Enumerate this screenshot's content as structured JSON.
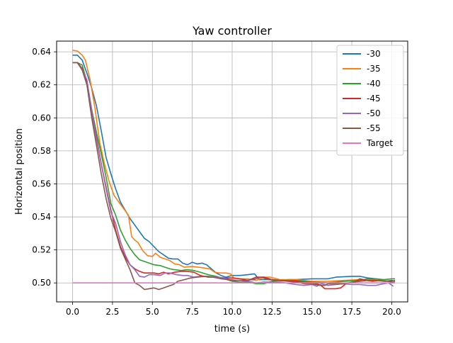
{
  "chart_data": {
    "type": "line",
    "title": "Yaw controller",
    "xlabel": "time (s)",
    "ylabel": "Horizontal position",
    "xlim": [
      -1.0,
      21.0
    ],
    "ylim": [
      0.4885,
      0.6465
    ],
    "x_ticks": [
      0.0,
      2.5,
      5.0,
      7.5,
      10.0,
      12.5,
      15.0,
      17.5,
      20.0
    ],
    "x_tick_labels": [
      "0.0",
      "2.5",
      "5.0",
      "7.5",
      "10.0",
      "12.5",
      "15.0",
      "17.5",
      "20.0"
    ],
    "y_ticks": [
      0.5,
      0.52,
      0.54,
      0.56,
      0.58,
      0.6,
      0.62,
      0.64
    ],
    "y_tick_labels": [
      "0.50",
      "0.52",
      "0.54",
      "0.56",
      "0.58",
      "0.60",
      "0.62",
      "0.64"
    ],
    "grid": true,
    "legend_position": "top-right",
    "series": [
      {
        "name": "-30",
        "color": "#1f77b4",
        "points": [
          [
            0.0,
            0.638
          ],
          [
            0.3,
            0.638
          ],
          [
            0.6,
            0.635
          ],
          [
            0.9,
            0.627
          ],
          [
            1.2,
            0.618
          ],
          [
            1.5,
            0.607
          ],
          [
            1.8,
            0.592
          ],
          [
            2.1,
            0.576
          ],
          [
            2.4,
            0.566
          ],
          [
            2.7,
            0.557
          ],
          [
            3.0,
            0.549
          ],
          [
            3.3,
            0.544
          ],
          [
            3.6,
            0.539
          ],
          [
            3.9,
            0.535
          ],
          [
            4.2,
            0.531
          ],
          [
            4.5,
            0.527
          ],
          [
            4.8,
            0.525
          ],
          [
            5.1,
            0.522
          ],
          [
            5.4,
            0.519
          ],
          [
            5.7,
            0.517
          ],
          [
            6.0,
            0.515
          ],
          [
            6.3,
            0.5145
          ],
          [
            6.6,
            0.5145
          ],
          [
            6.9,
            0.512
          ],
          [
            7.2,
            0.511
          ],
          [
            7.5,
            0.5125
          ],
          [
            7.8,
            0.5115
          ],
          [
            8.1,
            0.512
          ],
          [
            8.4,
            0.511
          ],
          [
            8.7,
            0.5085
          ],
          [
            9.0,
            0.506
          ],
          [
            9.3,
            0.5045
          ],
          [
            9.6,
            0.5035
          ],
          [
            10.0,
            0.5045
          ],
          [
            10.5,
            0.5045
          ],
          [
            11.0,
            0.505
          ],
          [
            11.4,
            0.5055
          ],
          [
            11.7,
            0.502
          ],
          [
            12.0,
            0.502
          ],
          [
            12.5,
            0.502
          ],
          [
            13.0,
            0.5015
          ],
          [
            13.5,
            0.502
          ],
          [
            14.0,
            0.502
          ],
          [
            15.0,
            0.5025
          ],
          [
            16.0,
            0.5025
          ],
          [
            16.5,
            0.5035
          ],
          [
            17.5,
            0.504
          ],
          [
            18.0,
            0.504
          ],
          [
            18.5,
            0.503
          ],
          [
            19.0,
            0.5025
          ],
          [
            19.5,
            0.5015
          ],
          [
            20.0,
            0.5005
          ],
          [
            20.2,
            0.5005
          ]
        ]
      },
      {
        "name": "-35",
        "color": "#ff7f0e",
        "points": [
          [
            0.0,
            0.641
          ],
          [
            0.3,
            0.6405
          ],
          [
            0.6,
            0.638
          ],
          [
            0.8,
            0.635
          ],
          [
            1.1,
            0.623
          ],
          [
            1.4,
            0.606
          ],
          [
            1.7,
            0.585
          ],
          [
            2.0,
            0.572
          ],
          [
            2.3,
            0.561
          ],
          [
            2.6,
            0.553
          ],
          [
            2.9,
            0.549
          ],
          [
            3.2,
            0.545
          ],
          [
            3.5,
            0.541
          ],
          [
            3.7,
            0.528
          ],
          [
            3.9,
            0.526
          ],
          [
            4.1,
            0.5245
          ],
          [
            4.4,
            0.5195
          ],
          [
            4.7,
            0.5165
          ],
          [
            5.0,
            0.516
          ],
          [
            5.2,
            0.518
          ],
          [
            5.5,
            0.5155
          ],
          [
            5.8,
            0.5145
          ],
          [
            6.1,
            0.5135
          ],
          [
            6.4,
            0.5115
          ],
          [
            6.7,
            0.511
          ],
          [
            7.0,
            0.5095
          ],
          [
            7.5,
            0.51
          ],
          [
            7.9,
            0.5095
          ],
          [
            8.3,
            0.509
          ],
          [
            8.6,
            0.5085
          ],
          [
            8.9,
            0.5065
          ],
          [
            9.2,
            0.506
          ],
          [
            9.6,
            0.506
          ],
          [
            9.9,
            0.5055
          ],
          [
            10.1,
            0.503
          ],
          [
            10.5,
            0.5025
          ],
          [
            11.0,
            0.5025
          ],
          [
            11.5,
            0.5015
          ],
          [
            12.0,
            0.5035
          ],
          [
            12.4,
            0.5035
          ],
          [
            13.0,
            0.502
          ],
          [
            14.0,
            0.502
          ],
          [
            15.0,
            0.501
          ],
          [
            16.0,
            0.501
          ],
          [
            17.0,
            0.5015
          ],
          [
            18.0,
            0.502
          ],
          [
            19.0,
            0.502
          ],
          [
            20.0,
            0.501
          ],
          [
            20.2,
            0.5005
          ]
        ]
      },
      {
        "name": "-40",
        "color": "#2ca02c",
        "points": [
          [
            0.0,
            0.6335
          ],
          [
            0.3,
            0.6335
          ],
          [
            0.6,
            0.632
          ],
          [
            0.9,
            0.622
          ],
          [
            1.2,
            0.605
          ],
          [
            1.5,
            0.591
          ],
          [
            1.8,
            0.578
          ],
          [
            2.1,
            0.564
          ],
          [
            2.4,
            0.548
          ],
          [
            2.7,
            0.541
          ],
          [
            3.0,
            0.532
          ],
          [
            3.3,
            0.526
          ],
          [
            3.6,
            0.521
          ],
          [
            3.9,
            0.517
          ],
          [
            4.2,
            0.514
          ],
          [
            4.5,
            0.513
          ],
          [
            4.8,
            0.512
          ],
          [
            5.1,
            0.511
          ],
          [
            5.5,
            0.5105
          ],
          [
            5.8,
            0.5095
          ],
          [
            6.1,
            0.5085
          ],
          [
            6.4,
            0.508
          ],
          [
            6.8,
            0.5075
          ],
          [
            7.2,
            0.508
          ],
          [
            7.6,
            0.5075
          ],
          [
            8.0,
            0.5065
          ],
          [
            8.5,
            0.505
          ],
          [
            9.0,
            0.504
          ],
          [
            9.5,
            0.5025
          ],
          [
            10.0,
            0.501
          ],
          [
            10.5,
            0.5005
          ],
          [
            11.0,
            0.5005
          ],
          [
            11.5,
            0.4995
          ],
          [
            12.0,
            0.4995
          ],
          [
            12.5,
            0.501
          ],
          [
            13.0,
            0.5015
          ],
          [
            14.0,
            0.5015
          ],
          [
            15.0,
            0.5005
          ],
          [
            16.0,
            0.5
          ],
          [
            17.0,
            0.501
          ],
          [
            18.0,
            0.5015
          ],
          [
            18.5,
            0.5025
          ],
          [
            19.0,
            0.5025
          ],
          [
            19.5,
            0.502
          ],
          [
            20.0,
            0.5025
          ],
          [
            20.2,
            0.5025
          ]
        ]
      },
      {
        "name": "-45",
        "color": "#d62728",
        "points": [
          [
            0.0,
            0.6335
          ],
          [
            0.3,
            0.6335
          ],
          [
            0.6,
            0.63
          ],
          [
            0.9,
            0.621
          ],
          [
            1.2,
            0.603
          ],
          [
            1.5,
            0.588
          ],
          [
            1.8,
            0.572
          ],
          [
            2.1,
            0.558
          ],
          [
            2.4,
            0.544
          ],
          [
            2.7,
            0.532
          ],
          [
            3.0,
            0.522
          ],
          [
            3.3,
            0.5155
          ],
          [
            3.6,
            0.511
          ],
          [
            3.9,
            0.5085
          ],
          [
            4.2,
            0.507
          ],
          [
            4.5,
            0.506
          ],
          [
            4.8,
            0.506
          ],
          [
            5.1,
            0.506
          ],
          [
            5.4,
            0.5055
          ],
          [
            5.7,
            0.5065
          ],
          [
            6.0,
            0.5055
          ],
          [
            6.4,
            0.5065
          ],
          [
            6.8,
            0.507
          ],
          [
            7.2,
            0.507
          ],
          [
            7.6,
            0.5065
          ],
          [
            8.0,
            0.5045
          ],
          [
            8.5,
            0.5035
          ],
          [
            9.0,
            0.5035
          ],
          [
            9.5,
            0.503
          ],
          [
            10.0,
            0.503
          ],
          [
            10.5,
            0.5025
          ],
          [
            11.0,
            0.5015
          ],
          [
            11.5,
            0.5035
          ],
          [
            12.0,
            0.5035
          ],
          [
            12.5,
            0.502
          ],
          [
            13.0,
            0.5015
          ],
          [
            14.0,
            0.501
          ],
          [
            15.0,
            0.5
          ],
          [
            15.5,
            0.499
          ],
          [
            15.8,
            0.4965
          ],
          [
            16.5,
            0.4965
          ],
          [
            16.8,
            0.497
          ],
          [
            17.2,
            0.5
          ],
          [
            17.6,
            0.5
          ],
          [
            18.0,
            0.5025
          ],
          [
            18.4,
            0.5015
          ],
          [
            18.8,
            0.501
          ],
          [
            19.2,
            0.5015
          ],
          [
            19.6,
            0.501
          ],
          [
            20.0,
            0.5015
          ],
          [
            20.2,
            0.501
          ]
        ]
      },
      {
        "name": "-50",
        "color": "#9467bd",
        "points": [
          [
            0.0,
            0.6335
          ],
          [
            0.3,
            0.6335
          ],
          [
            0.6,
            0.6295
          ],
          [
            0.9,
            0.623
          ],
          [
            1.2,
            0.604
          ],
          [
            1.5,
            0.587
          ],
          [
            1.8,
            0.572
          ],
          [
            2.1,
            0.557
          ],
          [
            2.4,
            0.543
          ],
          [
            2.7,
            0.536
          ],
          [
            3.0,
            0.525
          ],
          [
            3.3,
            0.517
          ],
          [
            3.6,
            0.511
          ],
          [
            3.9,
            0.508
          ],
          [
            4.2,
            0.504
          ],
          [
            4.5,
            0.5035
          ],
          [
            4.8,
            0.505
          ],
          [
            5.1,
            0.505
          ],
          [
            5.5,
            0.5045
          ],
          [
            5.8,
            0.506
          ],
          [
            6.1,
            0.506
          ],
          [
            6.5,
            0.505
          ],
          [
            6.9,
            0.5045
          ],
          [
            7.2,
            0.5045
          ],
          [
            7.6,
            0.5035
          ],
          [
            8.0,
            0.504
          ],
          [
            8.5,
            0.504
          ],
          [
            9.0,
            0.5035
          ],
          [
            9.5,
            0.503
          ],
          [
            10.0,
            0.5015
          ],
          [
            10.5,
            0.5015
          ],
          [
            11.0,
            0.501
          ],
          [
            11.5,
            0.5
          ],
          [
            12.0,
            0.5005
          ],
          [
            12.5,
            0.5005
          ],
          [
            13.0,
            0.5005
          ],
          [
            14.0,
            0.499
          ],
          [
            14.5,
            0.4985
          ],
          [
            15.0,
            0.499
          ],
          [
            15.3,
            0.498
          ],
          [
            15.6,
            0.4995
          ],
          [
            16.0,
            0.4985
          ],
          [
            16.5,
            0.499
          ],
          [
            17.0,
            0.4995
          ],
          [
            17.5,
            0.499
          ],
          [
            18.0,
            0.499
          ],
          [
            18.5,
            0.4985
          ],
          [
            19.0,
            0.4985
          ],
          [
            19.5,
            0.4995
          ],
          [
            19.8,
            0.5
          ],
          [
            20.1,
            0.498
          ]
        ]
      },
      {
        "name": "-55",
        "color": "#8c564b",
        "points": [
          [
            0.0,
            0.6335
          ],
          [
            0.3,
            0.6335
          ],
          [
            0.6,
            0.629
          ],
          [
            0.9,
            0.62
          ],
          [
            1.2,
            0.6
          ],
          [
            1.5,
            0.583
          ],
          [
            1.8,
            0.566
          ],
          [
            2.1,
            0.551
          ],
          [
            2.4,
            0.539
          ],
          [
            2.7,
            0.531
          ],
          [
            3.0,
            0.521
          ],
          [
            3.3,
            0.5145
          ],
          [
            3.6,
            0.508
          ],
          [
            3.9,
            0.5
          ],
          [
            4.2,
            0.4985
          ],
          [
            4.5,
            0.496
          ],
          [
            4.8,
            0.4965
          ],
          [
            5.1,
            0.497
          ],
          [
            5.4,
            0.496
          ],
          [
            5.7,
            0.497
          ],
          [
            6.0,
            0.498
          ],
          [
            6.3,
            0.499
          ],
          [
            6.6,
            0.501
          ],
          [
            7.0,
            0.502
          ],
          [
            7.4,
            0.503
          ],
          [
            7.8,
            0.5035
          ],
          [
            8.3,
            0.504
          ],
          [
            8.8,
            0.5035
          ],
          [
            9.3,
            0.5025
          ],
          [
            9.8,
            0.502
          ],
          [
            10.3,
            0.5015
          ],
          [
            10.8,
            0.5015
          ],
          [
            11.3,
            0.502
          ],
          [
            11.8,
            0.5035
          ],
          [
            12.3,
            0.502
          ],
          [
            12.8,
            0.5015
          ],
          [
            13.5,
            0.501
          ],
          [
            14.0,
            0.5005
          ],
          [
            14.5,
            0.4995
          ],
          [
            15.0,
            0.4995
          ],
          [
            15.5,
            0.4985
          ],
          [
            15.8,
            0.4985
          ],
          [
            16.0,
            0.4995
          ],
          [
            16.5,
            0.4995
          ],
          [
            17.0,
            0.4995
          ],
          [
            17.5,
            0.5005
          ],
          [
            18.0,
            0.501
          ],
          [
            18.5,
            0.5015
          ],
          [
            19.0,
            0.5015
          ],
          [
            19.5,
            0.501
          ],
          [
            20.0,
            0.501
          ],
          [
            20.2,
            0.5015
          ]
        ]
      },
      {
        "name": "Target",
        "color": "#e377c2",
        "points": [
          [
            0.0,
            0.5
          ],
          [
            20.2,
            0.5
          ]
        ]
      }
    ]
  }
}
